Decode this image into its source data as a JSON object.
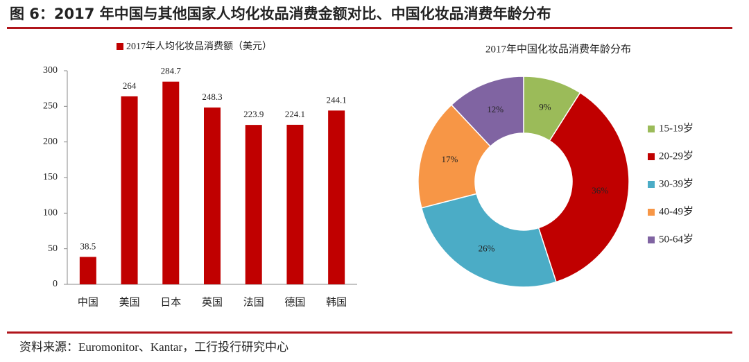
{
  "header": {
    "title": "图 6：2017 年中国与其他国家人均化妆品消费金额对比、中国化妆品消费年龄分布"
  },
  "chart_data": [
    {
      "type": "bar",
      "legend": "2017年人均化妆品消费额（美元）",
      "color": "#c00000",
      "categories": [
        "中国",
        "美国",
        "日本",
        "英国",
        "法国",
        "德国",
        "韩国"
      ],
      "values": [
        38.5,
        264,
        284.7,
        248.3,
        223.9,
        224.1,
        244.1
      ],
      "ylim": [
        0,
        300
      ],
      "yticks": [
        0,
        50,
        100,
        150,
        200,
        250,
        300
      ],
      "grid": false
    },
    {
      "type": "donut",
      "title": "2017年中国化妆品消费年龄分布",
      "categories": [
        "15-19岁",
        "20-29岁",
        "30-39岁",
        "40-49岁",
        "50-64岁"
      ],
      "values": [
        9,
        36,
        26,
        17,
        12
      ],
      "value_labels": [
        "9%",
        "36%",
        "26%",
        "17%",
        "12%"
      ],
      "colors": [
        "#9bbb59",
        "#c00000",
        "#4bacc6",
        "#f79646",
        "#8064a2"
      ]
    }
  ],
  "source": "资料来源：Euromonitor、Kantar，工行投行研究中心"
}
